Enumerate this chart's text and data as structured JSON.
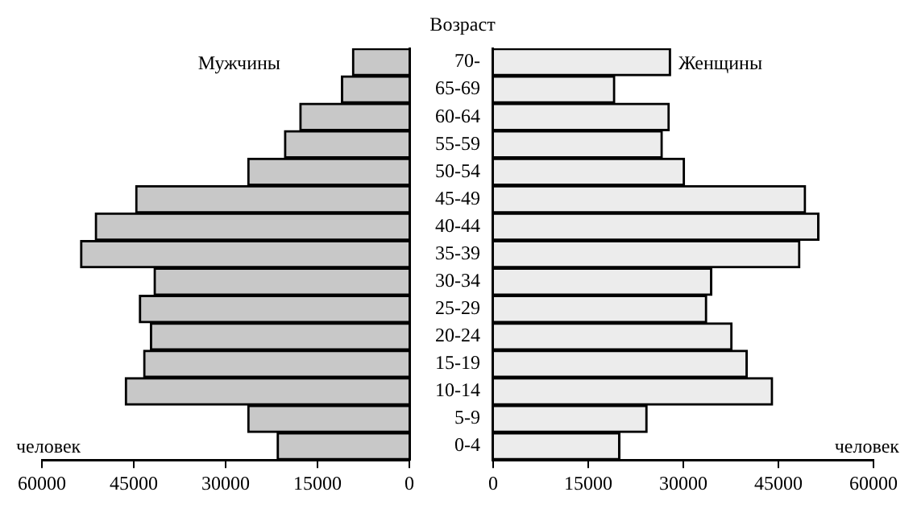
{
  "chart_data": [
    {
      "type": "bar",
      "orientation": "horizontal",
      "xlabel": "человек",
      "tick_labels": "x",
      "categories": [
        null,
        null,
        null,
        null,
        null,
        null,
        null,
        null,
        null,
        null,
        null,
        null,
        null,
        null,
        null
      ],
      "series": [
        {
          "name": "Мужчины",
          "color": "#c8c8c8",
          "values": [
            9300,
            11100,
            17900,
            20400,
            26400,
            44700,
            51300,
            53700,
            41700,
            44100,
            42300,
            43400,
            46400,
            26400,
            21600
          ]
        }
      ],
      "xlim": [
        60000,
        0
      ],
      "xticks": [
        60000,
        45000,
        30000,
        15000,
        0
      ],
      "legend": false
    },
    {
      "type": "bar",
      "orientation": "horizontal",
      "xlabel": "человек",
      "ylabel": "Возраст",
      "categories": [
        "70-",
        "65-69",
        "60-64",
        "55-59",
        "50-54",
        "45-49",
        "40-44",
        "35-39",
        "30-34",
        "25-29",
        "20-24",
        "15-19",
        "10-14",
        "5-9",
        "0-4"
      ],
      "series": [
        {
          "name": "Женщины",
          "color": "#ececec",
          "values": [
            28000,
            19200,
            27800,
            26700,
            30200,
            49300,
            51400,
            48400,
            34500,
            33700,
            37700,
            40100,
            44100,
            24300,
            20000
          ]
        }
      ],
      "xlim": [
        0,
        60000
      ],
      "xticks": [
        0,
        15000,
        30000,
        45000,
        60000
      ],
      "legend": false
    }
  ]
}
